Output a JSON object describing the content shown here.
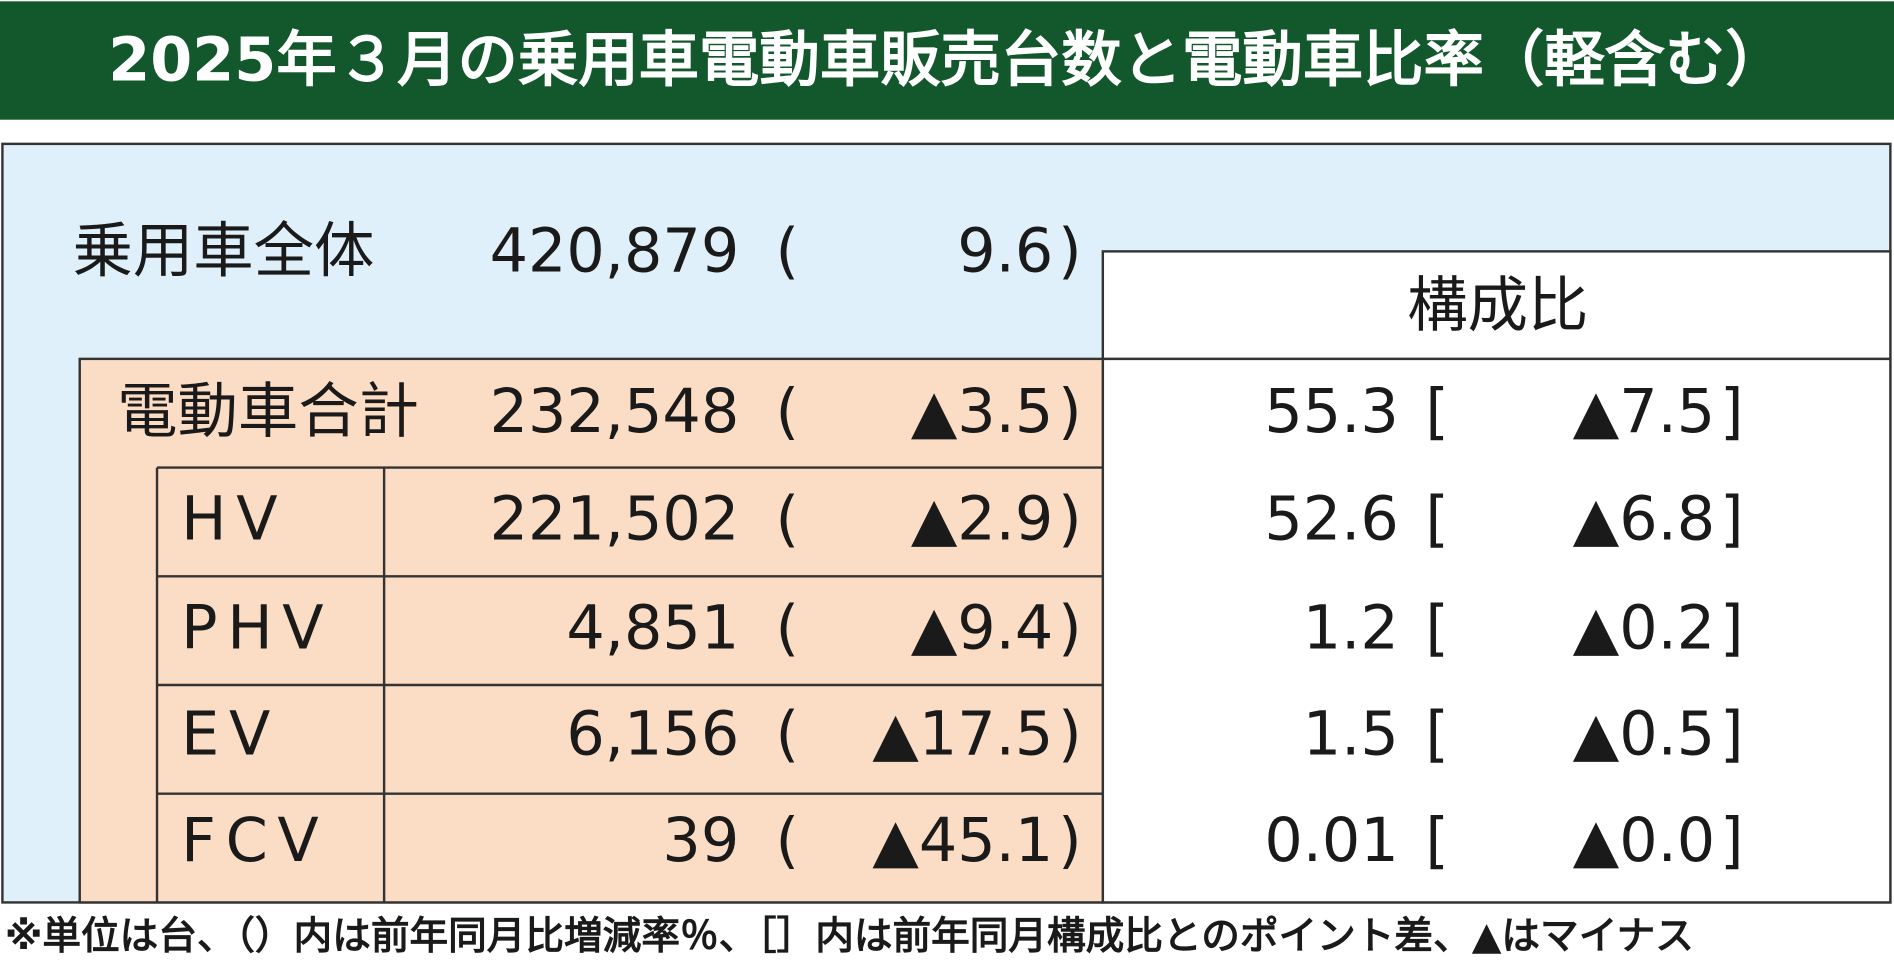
{
  "title": "2025年３月の乗用車電動車販売台数と電動車比率（軽含む）",
  "delimiters": {
    "paren_open": "(",
    "paren_close": ")",
    "bracket_open": "[",
    "bracket_close": "]"
  },
  "header": {
    "share": "構成比"
  },
  "total": {
    "label": "乗用車全体",
    "units": "420,879",
    "change": "9.6"
  },
  "rows": [
    {
      "label": "電動車合計",
      "units": "232,548",
      "change": "▲3.5",
      "share": "55.3",
      "share_change": "▲7.5"
    },
    {
      "label": "HV",
      "units": "221,502",
      "change": "▲2.9",
      "share": "52.6",
      "share_change": "▲6.8"
    },
    {
      "label": "PHV",
      "units": "4,851",
      "change": "▲9.4",
      "share": "1.2",
      "share_change": "▲0.2"
    },
    {
      "label": "EV",
      "units": "6,156",
      "change": "▲17.5",
      "share": "1.5",
      "share_change": "▲0.5"
    },
    {
      "label": "FCV",
      "units": "39",
      "change": "▲45.1",
      "share": "0.01",
      "share_change": "▲0.0"
    }
  ],
  "footnote": "※単位は台、（）内は前年同月比増減率％、［］内は前年同月構成比とのポイント差、▲はマイナス"
}
